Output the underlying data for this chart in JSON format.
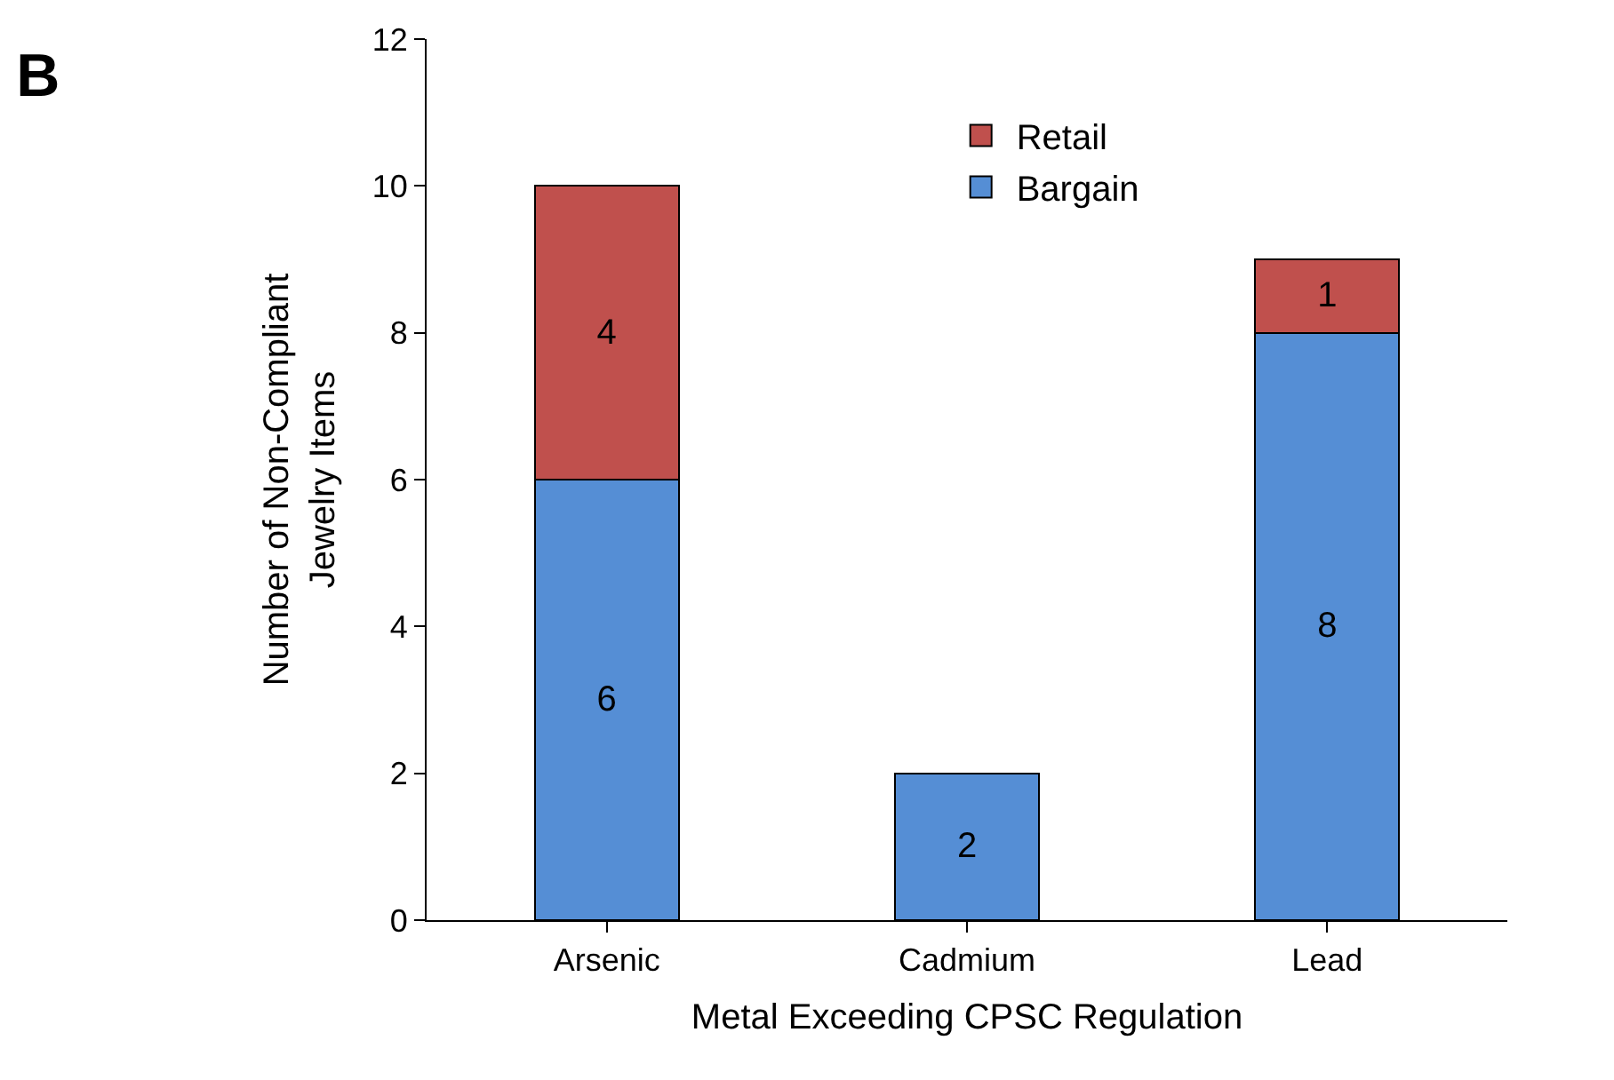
{
  "chart_data": {
    "type": "bar",
    "title": "B",
    "xlabel": "Metal Exceeding CPSC Regulation",
    "ylabel": "Number of Non-Compliant\nJewelry Items",
    "categories": [
      "Arsenic",
      "Cadmium",
      "Lead"
    ],
    "stacked": true,
    "series": [
      {
        "name": "Bargain",
        "color": "#558ed5",
        "values": [
          6,
          2,
          8
        ],
        "value_labels": [
          "6",
          "2",
          "8"
        ]
      },
      {
        "name": "Retail",
        "color": "#c0504d",
        "values": [
          4,
          null,
          1
        ],
        "value_labels": [
          "4",
          null,
          "1"
        ]
      }
    ],
    "ylim": [
      0,
      12
    ],
    "yticks": [
      0,
      2,
      4,
      6,
      8,
      10,
      12
    ],
    "legend": "top"
  }
}
